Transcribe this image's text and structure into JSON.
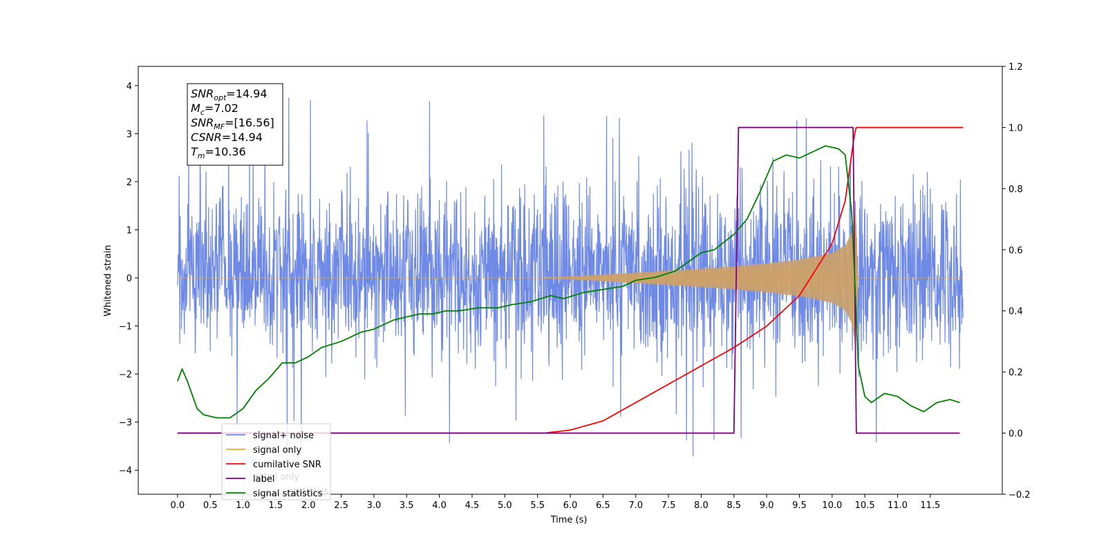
{
  "chart_data": {
    "type": "line",
    "xlabel": "Time (s)",
    "ylabel": "Whitened strain",
    "xlim": [
      -0.6,
      12.6
    ],
    "ylim_left": [
      -4.5,
      4.4
    ],
    "ylim_right": [
      -0.2,
      1.2
    ],
    "x_ticks": [
      "0.0",
      "0.5",
      "1.0",
      "1.5",
      "2.0",
      "2.5",
      "3.0",
      "3.5",
      "4.0",
      "4.5",
      "5.0",
      "5.5",
      "6.0",
      "6.5",
      "7.0",
      "7.5",
      "8.0",
      "8.5",
      "9.0",
      "9.5",
      "10.0",
      "10.5",
      "11.0",
      "11.5"
    ],
    "y_ticks_left": [
      "4",
      "3",
      "2",
      "1",
      "0",
      "−1",
      "−2",
      "−3",
      "−4"
    ],
    "y_ticks_right": [
      "1.2",
      "1.0",
      "0.8",
      "0.6",
      "0.4",
      "0.2",
      "0.0",
      "−0.2"
    ],
    "colors": {
      "signal_noise": "#6f8ae6",
      "signal_only": "#f5a623",
      "cumulative_snr": "#ff0000",
      "label": "#800080",
      "signal_statistics": "#008000"
    },
    "annotation": [
      {
        "label": "SNR",
        "sub": "opt",
        "value": "=14.94"
      },
      {
        "label": "M",
        "sub": "c",
        "value": "=7.02"
      },
      {
        "label": "SNR",
        "sub": "MF",
        "value": "=[16.56]"
      },
      {
        "label": "CSNR",
        "sub": "",
        "value": "=14.94"
      },
      {
        "label": "T",
        "sub": "m",
        "value": "=10.36"
      }
    ],
    "legend": [
      {
        "name": "signal+ noise",
        "color": "#6f8ae6"
      },
      {
        "name": "signal only",
        "color": "#f5a623"
      },
      {
        "name": "cumilative SNR",
        "color": "#ff0000"
      },
      {
        "name": "label",
        "color": "#800080"
      },
      {
        "name": "signal statistics",
        "color": "#008000"
      }
    ],
    "legend_overlap_text": [
      "label only",
      "statistics"
    ],
    "legend_placement": "lower-left",
    "series": [
      {
        "name": "signal+ noise",
        "axis": "left",
        "x_range": [
          0.0,
          12.0
        ],
        "typical_range": [
          -1.8,
          2.0
        ],
        "max": 4.0,
        "min": -4.1
      },
      {
        "name": "signal only",
        "axis": "left",
        "x": [
          0.0,
          5.5,
          6.0,
          6.5,
          7.0,
          7.5,
          8.0,
          8.5,
          9.0,
          9.5,
          10.0,
          10.2,
          10.3,
          10.36,
          10.4,
          12.0
        ],
        "amplitude": [
          0.0,
          0.0,
          0.03,
          0.07,
          0.11,
          0.15,
          0.19,
          0.24,
          0.3,
          0.38,
          0.52,
          0.68,
          0.95,
          1.45,
          0.0,
          0.0
        ]
      },
      {
        "name": "cumilative SNR",
        "axis": "right",
        "x": [
          0.0,
          5.6,
          6.0,
          6.5,
          7.0,
          7.5,
          8.0,
          8.5,
          9.0,
          9.5,
          10.0,
          10.2,
          10.33,
          10.36,
          10.4,
          12.0
        ],
        "y": [
          0.0,
          0.0,
          0.01,
          0.04,
          0.1,
          0.16,
          0.22,
          0.28,
          0.35,
          0.45,
          0.62,
          0.76,
          0.96,
          1.0,
          1.0,
          1.0
        ]
      },
      {
        "name": "label",
        "axis": "right",
        "x": [
          0.0,
          8.5,
          8.57,
          10.32,
          10.37,
          11.95
        ],
        "y": [
          0.0,
          0.0,
          1.0,
          1.0,
          0.0,
          0.0
        ]
      },
      {
        "name": "signal statistics",
        "axis": "right",
        "x": [
          0.0,
          0.07,
          0.15,
          0.3,
          0.4,
          0.6,
          0.8,
          1.0,
          1.2,
          1.4,
          1.6,
          1.8,
          2.0,
          2.2,
          2.5,
          2.8,
          3.0,
          3.3,
          3.5,
          3.7,
          3.9,
          4.1,
          4.3,
          4.6,
          4.9,
          5.1,
          5.4,
          5.7,
          5.9,
          6.2,
          6.5,
          6.8,
          7.0,
          7.3,
          7.6,
          7.8,
          8.0,
          8.2,
          8.5,
          8.7,
          8.9,
          9.1,
          9.3,
          9.5,
          9.7,
          9.9,
          10.1,
          10.2,
          10.3,
          10.35,
          10.4,
          10.5,
          10.6,
          10.8,
          11.0,
          11.2,
          11.4,
          11.6,
          11.8,
          11.95
        ],
        "y": [
          0.17,
          0.21,
          0.17,
          0.08,
          0.06,
          0.05,
          0.05,
          0.08,
          0.14,
          0.18,
          0.23,
          0.23,
          0.25,
          0.28,
          0.3,
          0.33,
          0.34,
          0.37,
          0.38,
          0.39,
          0.39,
          0.4,
          0.4,
          0.41,
          0.41,
          0.42,
          0.43,
          0.45,
          0.44,
          0.46,
          0.47,
          0.48,
          0.5,
          0.51,
          0.53,
          0.56,
          0.59,
          0.6,
          0.65,
          0.7,
          0.79,
          0.89,
          0.91,
          0.9,
          0.92,
          0.94,
          0.93,
          0.91,
          0.72,
          0.48,
          0.22,
          0.12,
          0.1,
          0.13,
          0.12,
          0.09,
          0.07,
          0.1,
          0.11,
          0.1
        ]
      }
    ]
  }
}
